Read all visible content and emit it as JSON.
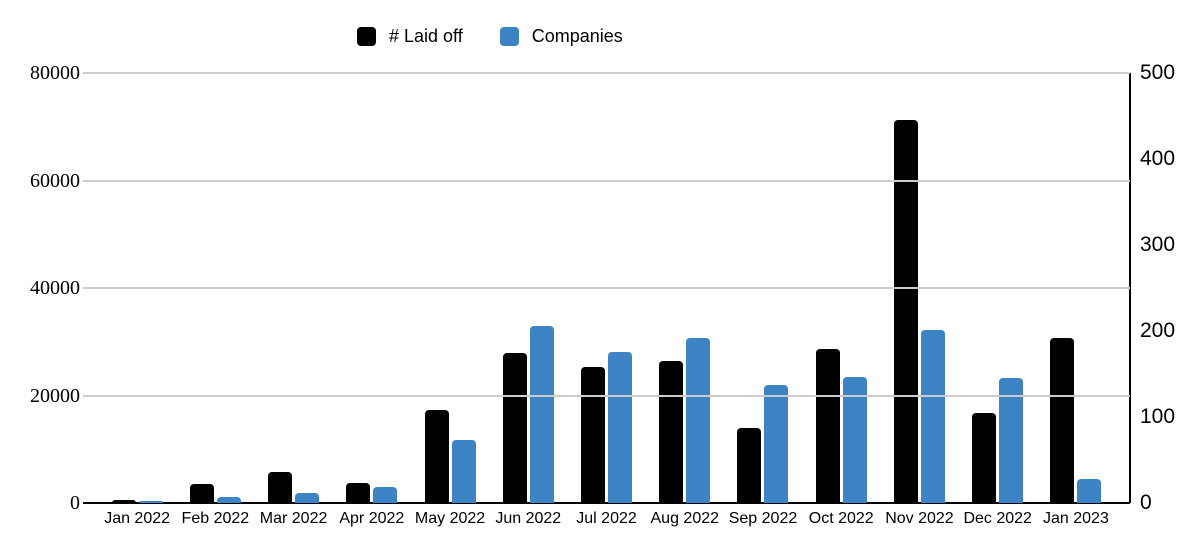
{
  "chart_data": {
    "type": "bar",
    "title": "",
    "categories": [
      "Jan 2022",
      "Feb 2022",
      "Mar 2022",
      "Apr 2022",
      "May 2022",
      "Jun 2022",
      "Jul 2022",
      "Aug 2022",
      "Sep 2022",
      "Oct 2022",
      "Nov 2022",
      "Dec 2022",
      "Jan 2023"
    ],
    "series": [
      {
        "name": "# Laid off",
        "axis": "left",
        "color": "#000000",
        "values": [
          510,
          3570,
          5710,
          3810,
          17300,
          27900,
          25300,
          26400,
          13950,
          28650,
          71250,
          16750,
          30700
        ]
      },
      {
        "name": "Companies",
        "axis": "right",
        "color": "#3d84c6",
        "values": [
          2,
          7,
          12,
          19,
          73,
          206,
          176,
          192,
          137,
          147,
          201,
          145,
          28
        ]
      }
    ],
    "left_axis": {
      "ticks": [
        "0",
        "20000",
        "40000",
        "60000",
        "80000"
      ],
      "min": 0,
      "max": 80000
    },
    "right_axis": {
      "ticks": [
        "0",
        "100",
        "200",
        "300",
        "400",
        "500"
      ],
      "min": 0,
      "max": 500
    },
    "grid": true,
    "legend_position": "top-center",
    "gridline_color": "#cccccc",
    "axis_color": "#000000",
    "background_color": "#ffffff"
  }
}
